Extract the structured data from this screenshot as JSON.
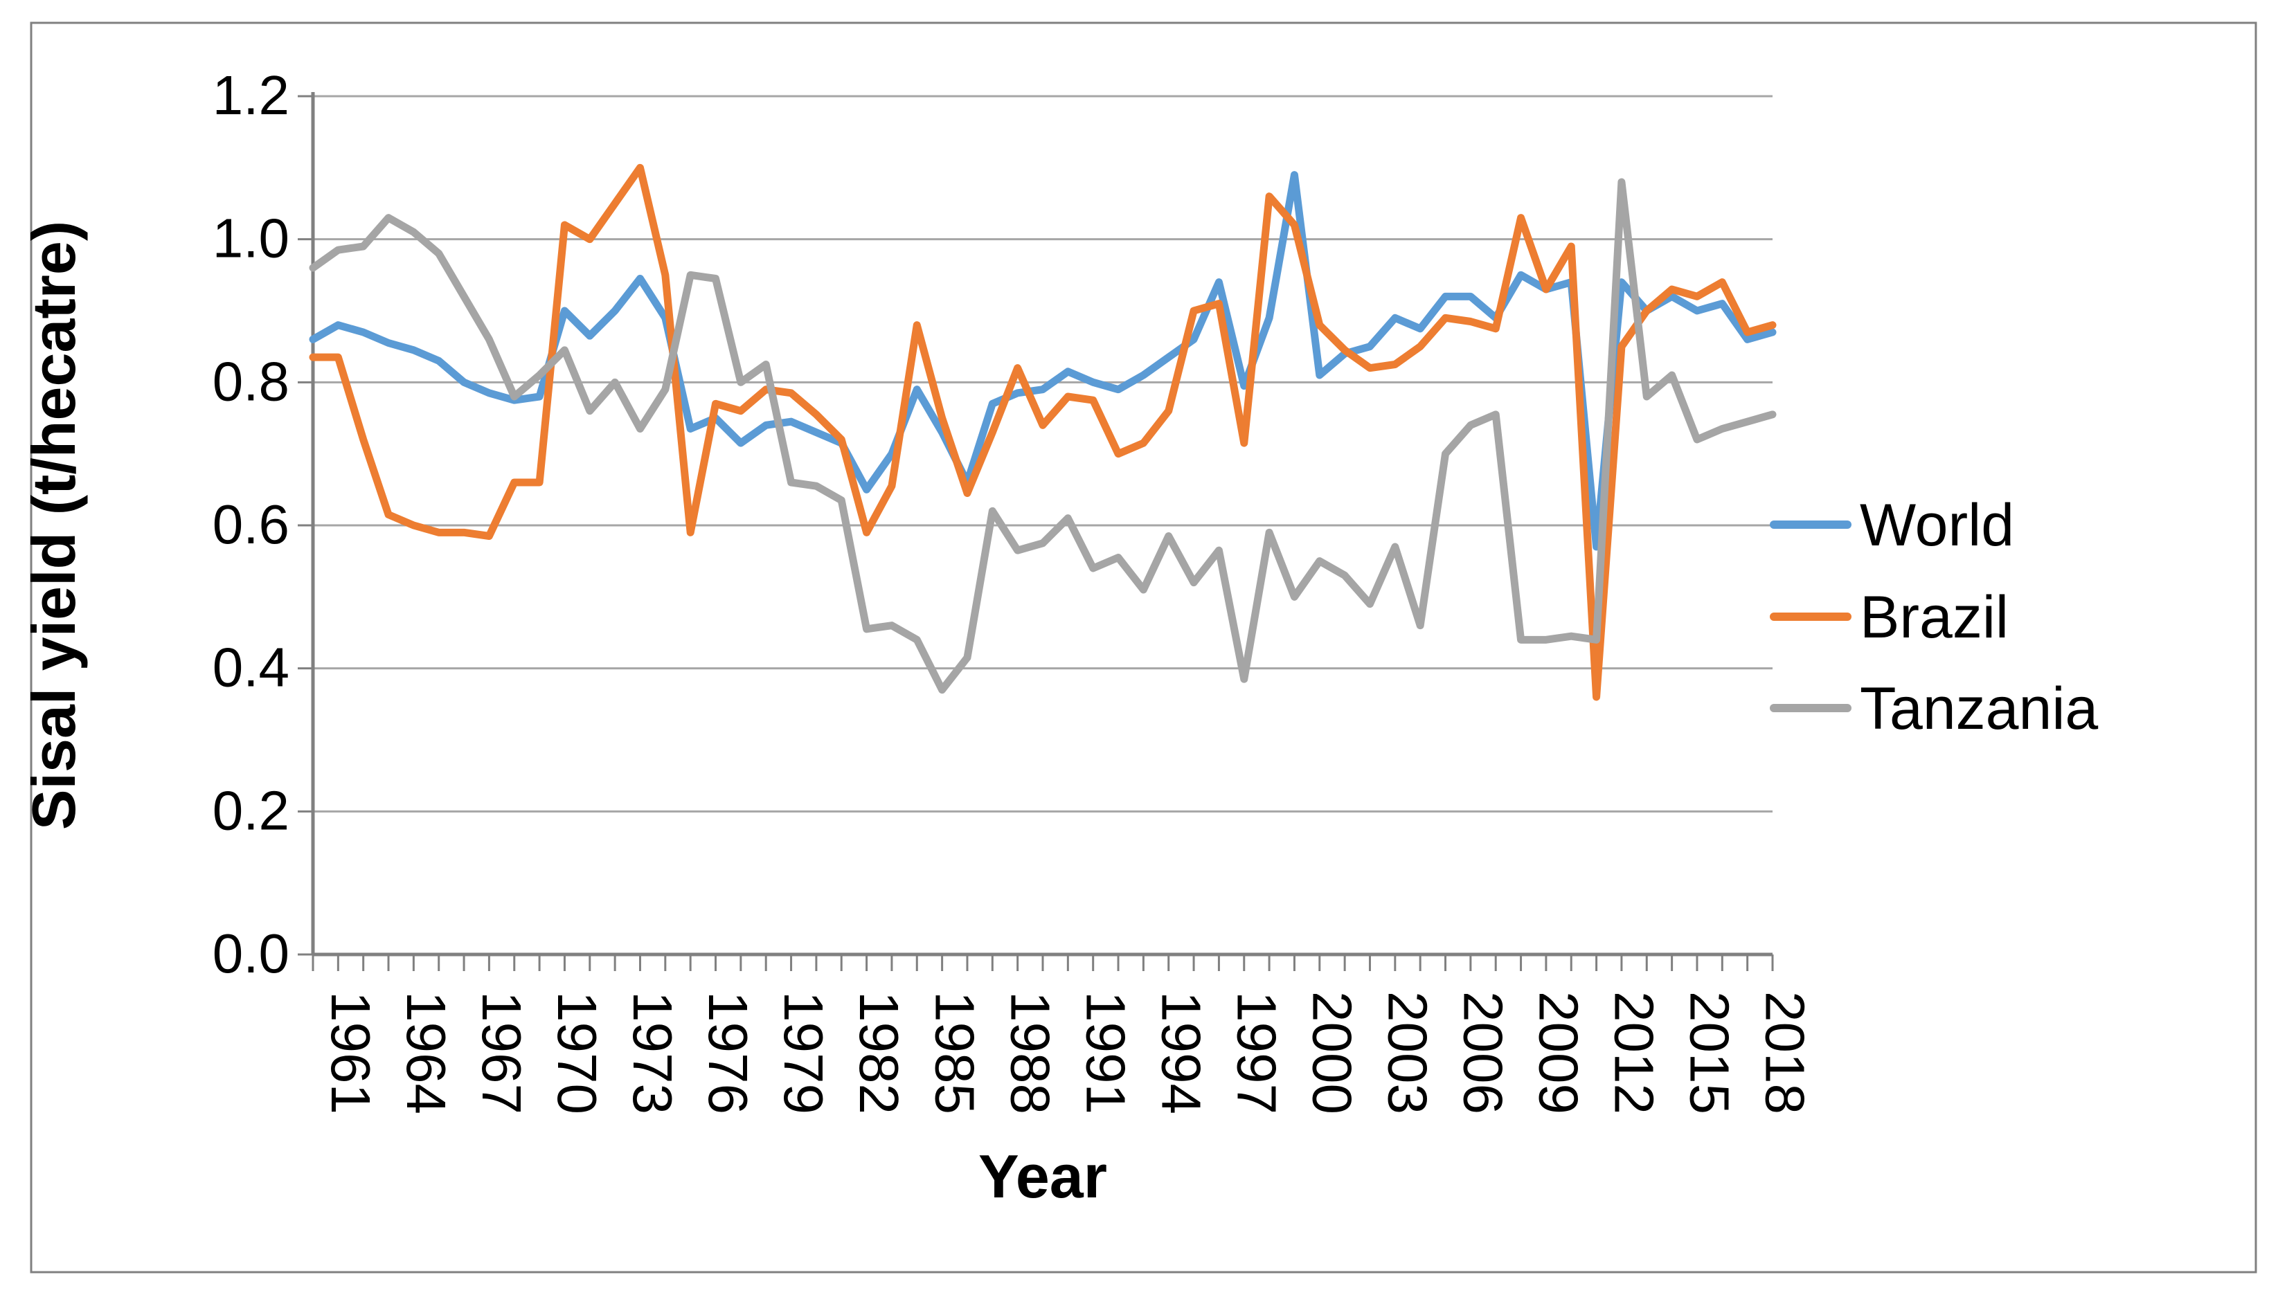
{
  "figure": {
    "border_color": "#808080",
    "background": "#ffffff"
  },
  "chart_data": {
    "type": "line",
    "title": "",
    "xlabel": "Year",
    "ylabel": "Sisal yield (t/hecatre)",
    "ylim": [
      0.0,
      1.2
    ],
    "y_ticks": [
      "0.0",
      "0.2",
      "0.4",
      "0.6",
      "0.8",
      "1.0",
      "1.2"
    ],
    "x_tick_labels": [
      "1961",
      "1964",
      "1967",
      "1970",
      "1973",
      "1976",
      "1979",
      "1982",
      "1985",
      "1988",
      "1991",
      "1994",
      "1997",
      "2000",
      "2003",
      "2006",
      "2009",
      "2012",
      "2015",
      "2018"
    ],
    "grid": true,
    "grid_color": "#a6a6a6",
    "axis_color": "#808080",
    "legend_position": "right",
    "x": [
      1961,
      1962,
      1963,
      1964,
      1965,
      1966,
      1967,
      1968,
      1969,
      1970,
      1971,
      1972,
      1973,
      1974,
      1975,
      1976,
      1977,
      1978,
      1979,
      1980,
      1981,
      1982,
      1983,
      1984,
      1985,
      1986,
      1987,
      1988,
      1989,
      1990,
      1991,
      1992,
      1993,
      1994,
      1995,
      1996,
      1997,
      1998,
      1999,
      2000,
      2001,
      2002,
      2003,
      2004,
      2005,
      2006,
      2007,
      2008,
      2009,
      2010,
      2011,
      2012,
      2013,
      2014,
      2015,
      2016,
      2017,
      2018,
      2019
    ],
    "series": [
      {
        "name": "World",
        "color": "#5b9bd5",
        "values": [
          0.86,
          0.88,
          0.87,
          0.855,
          0.845,
          0.83,
          0.8,
          0.785,
          0.775,
          0.78,
          0.9,
          0.865,
          0.9,
          0.945,
          0.89,
          0.735,
          0.75,
          0.715,
          0.74,
          0.745,
          0.73,
          0.715,
          0.65,
          0.7,
          0.79,
          0.73,
          0.66,
          0.77,
          0.785,
          0.79,
          0.815,
          0.8,
          0.79,
          0.81,
          0.835,
          0.86,
          0.94,
          0.795,
          0.89,
          1.09,
          0.81,
          0.84,
          0.85,
          0.89,
          0.875,
          0.92,
          0.92,
          0.89,
          0.95,
          0.93,
          0.94,
          0.57,
          0.94,
          0.9,
          0.92,
          0.9,
          0.91,
          0.86,
          0.87
        ]
      },
      {
        "name": "Brazil",
        "color": "#ed7d31",
        "values": [
          0.835,
          0.835,
          0.72,
          0.615,
          0.6,
          0.59,
          0.59,
          0.585,
          0.66,
          0.66,
          1.02,
          1.0,
          1.05,
          1.1,
          0.95,
          0.59,
          0.77,
          0.76,
          0.79,
          0.785,
          0.755,
          0.72,
          0.59,
          0.655,
          0.88,
          0.75,
          0.645,
          0.73,
          0.82,
          0.74,
          0.78,
          0.775,
          0.7,
          0.715,
          0.76,
          0.9,
          0.91,
          0.715,
          1.06,
          1.02,
          0.88,
          0.845,
          0.82,
          0.825,
          0.85,
          0.89,
          0.885,
          0.875,
          1.03,
          0.93,
          0.99,
          0.36,
          0.85,
          0.9,
          0.93,
          0.92,
          0.94,
          0.87,
          0.88
        ]
      },
      {
        "name": "Tanzania",
        "color": "#a5a5a5",
        "values": [
          0.96,
          0.985,
          0.99,
          1.03,
          1.01,
          0.98,
          0.92,
          0.86,
          0.78,
          0.81,
          0.845,
          0.76,
          0.8,
          0.735,
          0.79,
          0.95,
          0.945,
          0.8,
          0.825,
          0.66,
          0.655,
          0.635,
          0.455,
          0.46,
          0.44,
          0.37,
          0.415,
          0.62,
          0.565,
          0.575,
          0.61,
          0.54,
          0.555,
          0.51,
          0.585,
          0.52,
          0.565,
          0.385,
          0.59,
          0.5,
          0.55,
          0.53,
          0.49,
          0.57,
          0.46,
          0.7,
          0.74,
          0.755,
          0.44,
          0.44,
          0.445,
          0.44,
          1.08,
          0.78,
          0.81,
          0.72,
          0.735,
          0.745,
          0.755
        ]
      }
    ]
  }
}
